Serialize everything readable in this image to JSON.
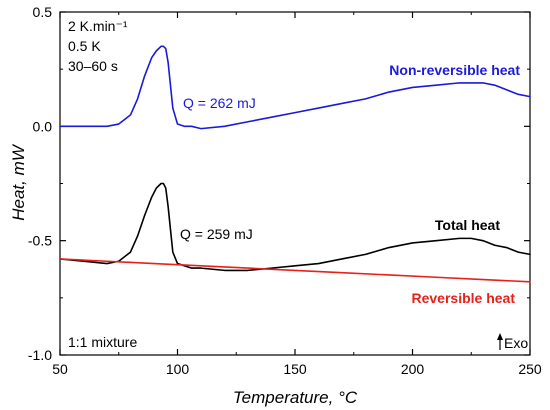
{
  "chart_data": {
    "type": "line",
    "xlabel": "Temperature, °C",
    "ylabel": "Heat, mW",
    "xlim": [
      50,
      250
    ],
    "ylim": [
      -1.0,
      0.5
    ],
    "x_ticks": [
      50,
      100,
      150,
      200,
      250
    ],
    "x_tick_labels": [
      "50",
      "100",
      "150",
      "200",
      "250"
    ],
    "y_ticks": [
      0.5,
      0.0,
      -0.5,
      -1.0
    ],
    "y_tick_labels": [
      "0.5",
      "0.0",
      "-0.5",
      "-1.0"
    ],
    "grid": false,
    "conditions": [
      "2 K.min⁻¹",
      "0.5 K",
      "30–60 s"
    ],
    "sample_label": "1:1 mixture",
    "exo_label": "Exo",
    "series": [
      {
        "name": "Non-reversible heat",
        "color": "#1a1adb",
        "annotation": "Q = 262 mJ",
        "x": [
          50,
          60,
          70,
          75,
          80,
          83,
          86,
          89,
          91,
          93,
          94,
          95,
          96,
          97,
          98,
          100,
          103,
          106,
          110,
          120,
          130,
          140,
          150,
          160,
          170,
          180,
          190,
          200,
          210,
          220,
          225,
          230,
          235,
          240,
          245,
          250
        ],
        "y": [
          0.0,
          0.0,
          0.0,
          0.01,
          0.05,
          0.12,
          0.22,
          0.3,
          0.33,
          0.35,
          0.35,
          0.34,
          0.28,
          0.18,
          0.08,
          0.01,
          0.0,
          0.0,
          -0.01,
          0.0,
          0.02,
          0.04,
          0.06,
          0.08,
          0.1,
          0.12,
          0.15,
          0.17,
          0.18,
          0.19,
          0.19,
          0.19,
          0.18,
          0.16,
          0.14,
          0.13
        ]
      },
      {
        "name": "Total heat",
        "color": "#000000",
        "annotation": "Q = 259 mJ",
        "x": [
          50,
          60,
          70,
          75,
          80,
          83,
          86,
          89,
          91,
          93,
          94,
          95,
          96,
          97,
          98,
          100,
          103,
          106,
          110,
          120,
          130,
          140,
          150,
          160,
          170,
          180,
          190,
          200,
          210,
          220,
          225,
          230,
          235,
          240,
          245,
          250
        ],
        "y": [
          -0.58,
          -0.59,
          -0.6,
          -0.59,
          -0.55,
          -0.48,
          -0.39,
          -0.31,
          -0.27,
          -0.25,
          -0.25,
          -0.27,
          -0.35,
          -0.45,
          -0.55,
          -0.6,
          -0.61,
          -0.62,
          -0.62,
          -0.63,
          -0.63,
          -0.62,
          -0.61,
          -0.6,
          -0.58,
          -0.56,
          -0.53,
          -0.51,
          -0.5,
          -0.49,
          -0.49,
          -0.5,
          -0.52,
          -0.53,
          -0.55,
          -0.56
        ]
      },
      {
        "name": "Reversible heat",
        "color": "#e8201a",
        "annotation": "",
        "x": [
          50,
          70,
          90,
          110,
          130,
          150,
          170,
          190,
          210,
          230,
          250
        ],
        "y": [
          -0.58,
          -0.59,
          -0.6,
          -0.61,
          -0.62,
          -0.63,
          -0.64,
          -0.65,
          -0.66,
          -0.67,
          -0.68
        ]
      }
    ]
  }
}
